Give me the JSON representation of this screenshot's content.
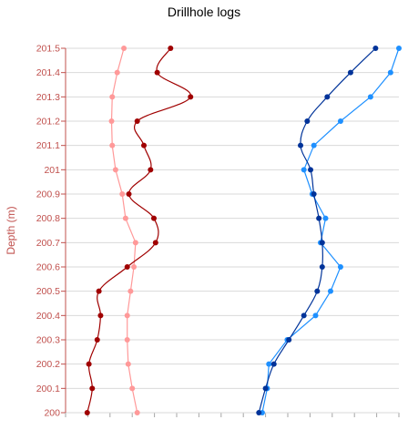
{
  "chart_data": {
    "type": "line",
    "title": "Drillhole logs",
    "ylabel": "Depth (m)",
    "xlabel": "",
    "ylim": [
      200,
      201.5
    ],
    "yticks": [
      "201.5",
      "201.4",
      "201.3",
      "201.2",
      "201.1",
      "201",
      "200.9",
      "200.8",
      "200.7",
      "200.6",
      "200.5",
      "200.4",
      "200.3",
      "200.2",
      "200.1",
      "200"
    ],
    "xlim": [
      0,
      100
    ],
    "grid": true,
    "legend": "none",
    "axis_color": "#c0504d",
    "depths": [
      201.5,
      201.4,
      201.3,
      201.2,
      201.1,
      201.0,
      200.9,
      200.8,
      200.7,
      200.6,
      200.5,
      200.4,
      200.3,
      200.2,
      200.1,
      200.0
    ],
    "series": [
      {
        "color": "#ff9999",
        "smooth": false,
        "values": [
          17.5,
          15.5,
          14.0,
          13.8,
          14.0,
          15.0,
          17.0,
          18.0,
          21.0,
          20.5,
          19.5,
          18.5,
          18.5,
          18.8,
          20.0,
          21.5
        ]
      },
      {
        "color": "#a00000",
        "smooth": true,
        "values": [
          31.5,
          27.5,
          37.5,
          21.5,
          23.5,
          25.5,
          19.0,
          26.5,
          27.0,
          18.5,
          10.0,
          10.5,
          9.5,
          7.0,
          8.0,
          6.5
        ]
      },
      {
        "color": "#1e90ff",
        "smooth": false,
        "values": [
          100.0,
          97.5,
          91.5,
          82.5,
          74.5,
          71.5,
          74.0,
          78.0,
          76.5,
          82.5,
          79.5,
          75.0,
          66.5,
          61.0,
          60.5,
          59.0
        ]
      },
      {
        "color": "#003399",
        "smooth": true,
        "values": [
          93.0,
          85.5,
          78.5,
          72.5,
          70.5,
          73.5,
          74.5,
          76.0,
          77.0,
          77.0,
          75.5,
          71.5,
          67.0,
          62.5,
          60.0,
          58.0
        ]
      }
    ]
  }
}
